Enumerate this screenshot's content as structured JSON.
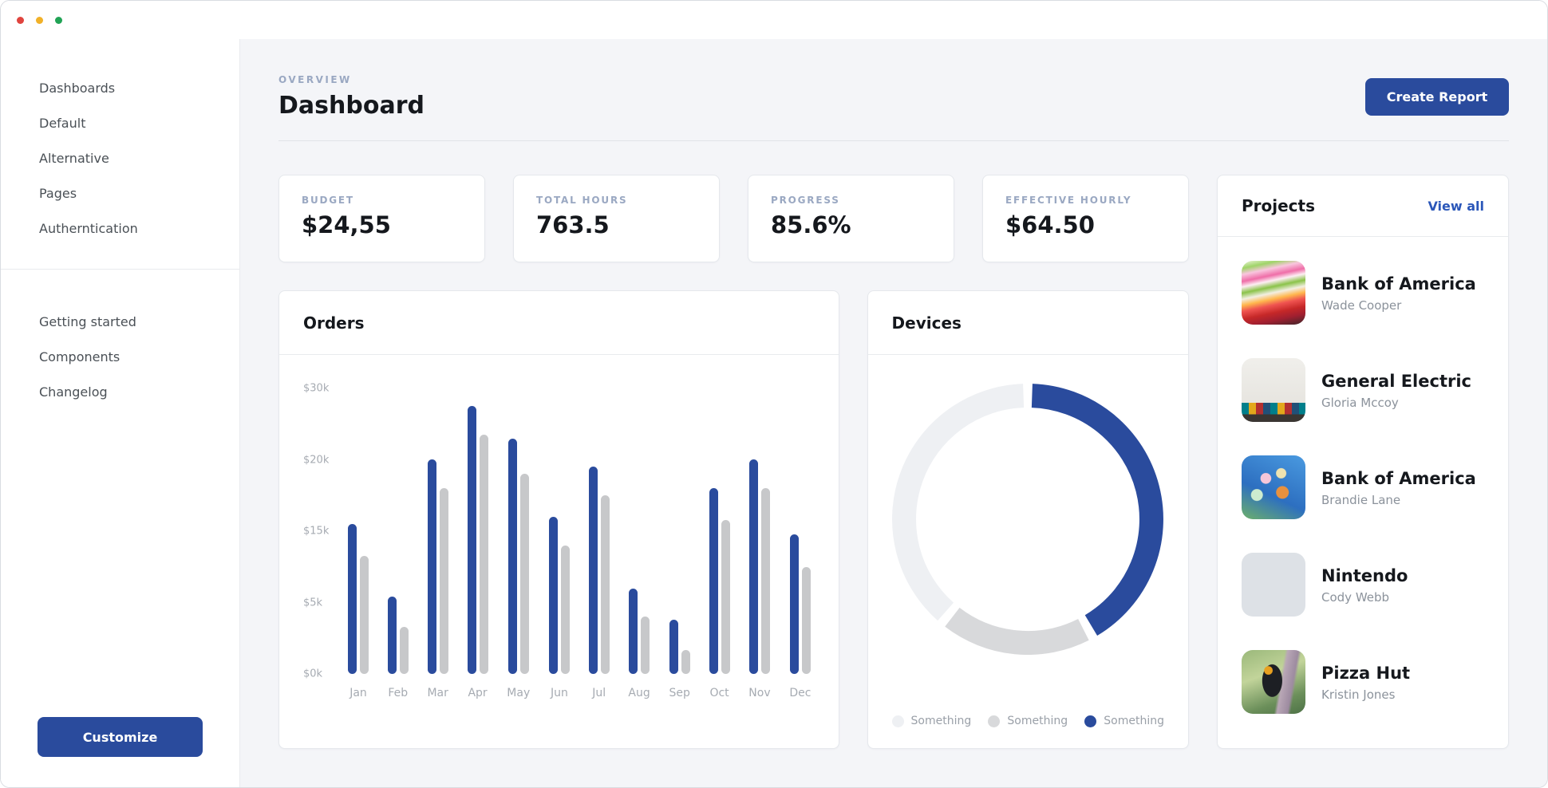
{
  "titlebar": {
    "controls": [
      "close",
      "minimize",
      "zoom"
    ]
  },
  "sidebar": {
    "groups": [
      {
        "items": [
          "Dashboards",
          "Default",
          "Alternative",
          "Pages",
          "Autherntication"
        ]
      },
      {
        "items": [
          "Getting started",
          "Components",
          "Changelog"
        ]
      }
    ],
    "customize_label": "Customize"
  },
  "header": {
    "eyebrow": "OVERVIEW",
    "title": "Dashboard",
    "create_report_label": "Create Report"
  },
  "stats": [
    {
      "label": "BUDGET",
      "value": "$24,55"
    },
    {
      "label": "TOTAL HOURS",
      "value": "763.5"
    },
    {
      "label": "PROGRESS",
      "value": "85.6%"
    },
    {
      "label": "EFFECTIVE HOURLY",
      "value": "$64.50"
    }
  ],
  "chart_data": {
    "orders": {
      "type": "bar",
      "title": "Orders",
      "categories": [
        "Jan",
        "Feb",
        "Mar",
        "Apr",
        "May",
        "Jun",
        "Jul",
        "Aug",
        "Sep",
        "Oct",
        "Nov",
        "Dec"
      ],
      "series": [
        {
          "name": "primary",
          "color": "#2a4b9d",
          "values": [
            15.5,
            5.8,
            20,
            27.5,
            23,
            16,
            19.5,
            7,
            3.8,
            18,
            20,
            14.5
          ]
        },
        {
          "name": "secondary",
          "color": "#c7c8ca",
          "values": [
            11.5,
            3.3,
            18,
            23.5,
            19,
            13,
            17.5,
            4,
            1.7,
            15.8,
            18,
            10
          ]
        }
      ],
      "unit": "$k",
      "y_ticks_top_to_bottom": [
        "$30k",
        "$20k",
        "$15k",
        "$5k",
        "$0k"
      ],
      "y_tick_values_ascending": [
        0,
        5,
        15,
        20,
        30
      ],
      "grid": false,
      "note": "tick labels are evenly spaced; values mapped piecewise between ticks"
    },
    "devices": {
      "type": "donut",
      "title": "Devices",
      "segments_clockwise_from_top": [
        {
          "label": "Something",
          "color": "#2a4b9d",
          "fraction": 0.42
        },
        {
          "label": "Something",
          "color": "#d8d9db",
          "fraction": 0.19
        },
        {
          "label": "Something",
          "color": "#eef0f3",
          "fraction": 0.39
        }
      ],
      "legend": [
        {
          "label": "Something",
          "color": "#eef0f3"
        },
        {
          "label": "Something",
          "color": "#d8d9db"
        },
        {
          "label": "Something",
          "color": "#2a4b9d"
        }
      ],
      "legend_position": "bottom"
    }
  },
  "projects": {
    "title": "Projects",
    "view_all_label": "View all",
    "items": [
      {
        "name": "Bank of America",
        "owner": "Wade Cooper",
        "thumb": "papers"
      },
      {
        "name": "General Electric",
        "owner": "Gloria Mccoy",
        "thumb": "crayons"
      },
      {
        "name": "Bank of America",
        "owner": "Brandie Lane",
        "thumb": "ferris"
      },
      {
        "name": "Nintendo",
        "owner": "Cody Webb",
        "thumb": "domes"
      },
      {
        "name": "Pizza Hut",
        "owner": "Kristin Jones",
        "thumb": "bird"
      }
    ]
  },
  "colors": {
    "accent": "#2a4b9d",
    "bar_secondary": "#c7c8ca",
    "donut_light": "#eef0f3",
    "donut_medium": "#d8d9db",
    "main_background": "#f4f5f8",
    "muted_label": "#9aa8c2",
    "link": "#2b57b9"
  }
}
